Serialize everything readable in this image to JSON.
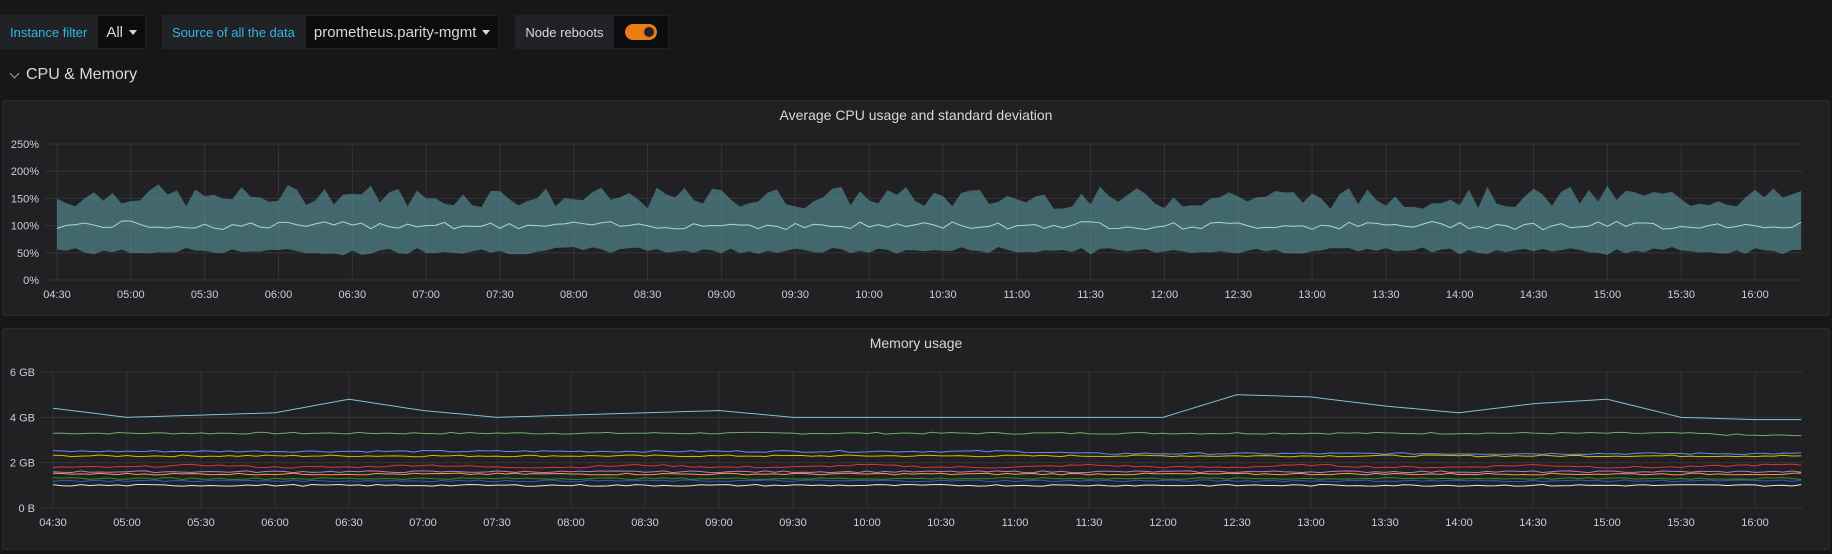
{
  "variables": {
    "instance_filter": {
      "label": "Instance filter",
      "value": "All"
    },
    "source": {
      "label": "Source of all the data",
      "value": "prometheus.parity-mgmt"
    },
    "node_reboots": {
      "label": "Node reboots",
      "enabled": true
    }
  },
  "row": {
    "title": "CPU & Memory",
    "icon": "chevron-down-icon"
  },
  "colors": {
    "accent": "#33b5e5",
    "toggle_on": "#eb7b18",
    "cpu_band": "#5fa2a7",
    "cpu_line": "#9ce2c0"
  },
  "panels": [
    {
      "title": "Average CPU usage and standard deviation"
    },
    {
      "title": "Memory usage"
    }
  ],
  "chart_data": [
    {
      "type": "area",
      "title": "Average CPU usage and standard deviation",
      "x": [
        "04:30",
        "05:00",
        "05:30",
        "06:00",
        "06:30",
        "07:00",
        "07:30",
        "08:00",
        "08:30",
        "09:00",
        "09:30",
        "10:00",
        "10:30",
        "11:00",
        "11:30",
        "12:00",
        "12:30",
        "13:00",
        "13:30",
        "14:00",
        "14:30",
        "15:00",
        "15:30",
        "16:00"
      ],
      "y_ticks": [
        "0%",
        "50%",
        "100%",
        "150%",
        "200%",
        "250%"
      ],
      "ylim": [
        0,
        250
      ],
      "series": [
        {
          "values": [
            100,
            102,
            99,
            101,
            100,
            103,
            98,
            101,
            100,
            102,
            99,
            100,
            101,
            100,
            102,
            99,
            101,
            100,
            100,
            102,
            99,
            101,
            100,
            101
          ]
        }
      ],
      "band_upper": [
        150,
        160,
        150,
        155,
        160,
        150,
        155,
        150,
        150,
        152,
        150,
        155,
        150,
        150,
        152,
        150,
        155,
        150,
        150,
        152,
        150,
        155,
        150,
        152
      ],
      "band_lower": [
        55,
        50,
        55,
        52,
        50,
        55,
        52,
        55,
        55,
        53,
        55,
        52,
        55,
        55,
        53,
        55,
        52,
        55,
        55,
        53,
        55,
        52,
        55,
        53
      ],
      "grid": true
    },
    {
      "type": "line",
      "title": "Memory usage",
      "x": [
        "04:30",
        "05:00",
        "05:30",
        "06:00",
        "06:30",
        "07:00",
        "07:30",
        "08:00",
        "08:30",
        "09:00",
        "09:30",
        "10:00",
        "10:30",
        "11:00",
        "11:30",
        "12:00",
        "12:30",
        "13:00",
        "13:30",
        "14:00",
        "14:30",
        "15:00",
        "15:30",
        "16:00"
      ],
      "y_ticks": [
        "0 B",
        "2 GB",
        "4 GB",
        "6 GB"
      ],
      "ylim": [
        0,
        6
      ],
      "series": [
        {
          "values": [
            4.4,
            4.0,
            4.1,
            4.2,
            4.8,
            4.3,
            4.0,
            4.1,
            4.2,
            4.3,
            4.0,
            4.0,
            4.0,
            4.0,
            4.0,
            4.0,
            5.0,
            4.9,
            4.5,
            4.2,
            4.6,
            4.8,
            4.0,
            3.9
          ],
          "color": "#7ec3d6"
        },
        {
          "values": [
            3.3,
            3.3,
            3.3,
            3.3,
            3.3,
            3.3,
            3.3,
            3.3,
            3.3,
            3.3,
            3.3,
            3.3,
            3.3,
            3.3,
            3.3,
            3.3,
            3.3,
            3.3,
            3.3,
            3.3,
            3.3,
            3.3,
            3.3,
            3.2
          ],
          "color": "#73a96b"
        },
        {
          "values": [
            2.3,
            2.3,
            2.3,
            2.3,
            2.3,
            2.3,
            2.3,
            2.3,
            2.3,
            2.3,
            2.3,
            2.3,
            2.3,
            2.3,
            2.3,
            2.3,
            2.3,
            2.3,
            2.3,
            2.3,
            2.3,
            2.3,
            2.3,
            2.3
          ],
          "color": "#e0b400"
        },
        {
          "values": [
            2.5,
            2.5,
            2.5,
            2.5,
            2.5,
            2.5,
            2.5,
            2.5,
            2.5,
            2.5,
            2.5,
            2.5,
            2.5,
            2.5,
            2.4,
            2.4,
            2.4,
            2.4,
            2.4,
            2.4,
            2.4,
            2.4,
            2.4,
            2.4
          ],
          "color": "#5794f2"
        },
        {
          "values": [
            1.8,
            1.8,
            1.9,
            1.8,
            1.8,
            1.9,
            1.8,
            1.8,
            1.9,
            1.8,
            1.8,
            1.9,
            1.8,
            1.8,
            1.9,
            1.8,
            1.8,
            1.9,
            1.8,
            1.8,
            1.9,
            1.8,
            1.8,
            1.9
          ],
          "color": "#e02f44"
        },
        {
          "values": [
            1.6,
            1.6,
            1.6,
            1.6,
            1.6,
            1.6,
            1.6,
            1.6,
            1.6,
            1.6,
            1.6,
            1.6,
            1.6,
            1.6,
            1.6,
            1.6,
            1.6,
            1.6,
            1.6,
            1.6,
            1.6,
            1.6,
            1.6,
            1.6
          ],
          "color": "#b877d9"
        },
        {
          "values": [
            1.5,
            1.5,
            1.5,
            1.5,
            1.5,
            1.5,
            1.5,
            1.5,
            1.5,
            1.5,
            1.5,
            1.5,
            1.5,
            1.5,
            1.5,
            1.5,
            1.5,
            1.5,
            1.5,
            1.5,
            1.5,
            1.5,
            1.5,
            1.5
          ],
          "color": "#ff9830"
        },
        {
          "values": [
            1.3,
            1.3,
            1.3,
            1.3,
            1.3,
            1.3,
            1.3,
            1.3,
            1.3,
            1.3,
            1.3,
            1.3,
            1.3,
            1.3,
            1.3,
            1.3,
            1.3,
            1.3,
            1.3,
            1.3,
            1.3,
            1.3,
            1.3,
            1.3
          ],
          "color": "#37872d"
        },
        {
          "values": [
            1.2,
            1.2,
            1.2,
            1.2,
            1.2,
            1.2,
            1.2,
            1.2,
            1.2,
            1.2,
            1.2,
            1.2,
            1.2,
            1.2,
            1.2,
            1.2,
            1.2,
            1.2,
            1.2,
            1.2,
            1.2,
            1.2,
            1.2,
            1.2
          ],
          "color": "#1f60c4"
        },
        {
          "values": [
            1.0,
            1.0,
            1.0,
            1.0,
            1.0,
            1.0,
            1.0,
            1.0,
            1.0,
            1.0,
            1.0,
            1.0,
            1.0,
            1.0,
            1.0,
            1.0,
            1.0,
            1.0,
            1.0,
            1.0,
            1.0,
            1.0,
            1.0,
            1.0
          ],
          "color": "#e6e6e6"
        }
      ],
      "grid": true
    }
  ]
}
